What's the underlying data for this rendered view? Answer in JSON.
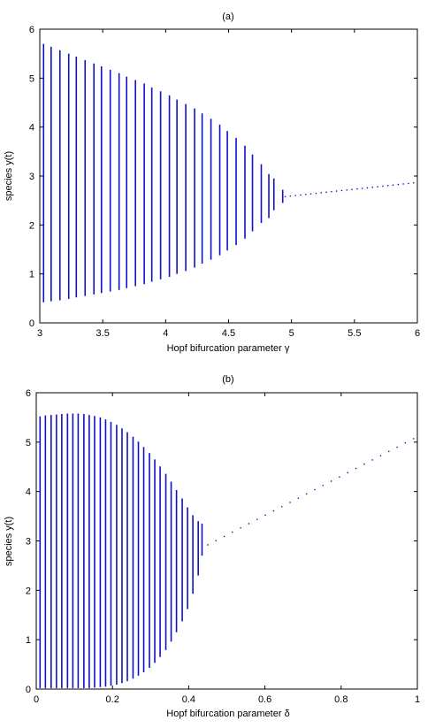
{
  "figure": {
    "series_color": "#1010c8"
  },
  "chart_data": [
    {
      "type": "bifurcation",
      "title": "(a)",
      "xlabel": "Hopf bifurcation parameter γ",
      "ylabel": "species y(t)",
      "xlim": [
        3,
        6
      ],
      "ylim": [
        0,
        6
      ],
      "xticks": [
        "3",
        "3.5",
        "4",
        "4.5",
        "5",
        "5.5",
        "6"
      ],
      "yticks": [
        "0",
        "1",
        "2",
        "3",
        "4",
        "5",
        "6"
      ],
      "grid": false,
      "oscillation_segments": [
        {
          "x": 3.03,
          "min": 0.42,
          "max": 5.7
        },
        {
          "x": 3.09,
          "min": 0.44,
          "max": 5.64
        },
        {
          "x": 3.16,
          "min": 0.46,
          "max": 5.57
        },
        {
          "x": 3.23,
          "min": 0.49,
          "max": 5.5
        },
        {
          "x": 3.29,
          "min": 0.52,
          "max": 5.44
        },
        {
          "x": 3.36,
          "min": 0.55,
          "max": 5.37
        },
        {
          "x": 3.43,
          "min": 0.58,
          "max": 5.3
        },
        {
          "x": 3.49,
          "min": 0.61,
          "max": 5.24
        },
        {
          "x": 3.56,
          "min": 0.64,
          "max": 5.17
        },
        {
          "x": 3.63,
          "min": 0.67,
          "max": 5.1
        },
        {
          "x": 3.69,
          "min": 0.71,
          "max": 5.03
        },
        {
          "x": 3.76,
          "min": 0.75,
          "max": 4.96
        },
        {
          "x": 3.83,
          "min": 0.79,
          "max": 4.89
        },
        {
          "x": 3.89,
          "min": 0.84,
          "max": 4.81
        },
        {
          "x": 3.96,
          "min": 0.89,
          "max": 4.73
        },
        {
          "x": 4.03,
          "min": 0.94,
          "max": 4.65
        },
        {
          "x": 4.09,
          "min": 1.0,
          "max": 4.56
        },
        {
          "x": 4.16,
          "min": 1.06,
          "max": 4.47
        },
        {
          "x": 4.23,
          "min": 1.13,
          "max": 4.38
        },
        {
          "x": 4.29,
          "min": 1.21,
          "max": 4.28
        },
        {
          "x": 4.36,
          "min": 1.29,
          "max": 4.17
        },
        {
          "x": 4.43,
          "min": 1.38,
          "max": 4.05
        },
        {
          "x": 4.49,
          "min": 1.48,
          "max": 3.92
        },
        {
          "x": 4.56,
          "min": 1.59,
          "max": 3.78
        },
        {
          "x": 4.63,
          "min": 1.72,
          "max": 3.62
        },
        {
          "x": 4.69,
          "min": 1.87,
          "max": 3.44
        },
        {
          "x": 4.76,
          "min": 2.04,
          "max": 3.24
        },
        {
          "x": 4.82,
          "min": 2.14,
          "max": 3.04
        },
        {
          "x": 4.86,
          "min": 2.3,
          "max": 2.95
        },
        {
          "x": 4.93,
          "min": 2.45,
          "max": 2.72
        }
      ],
      "steady_state": {
        "x_start": 4.95,
        "x_end": 5.97,
        "y_start": 2.58,
        "y_end": 2.86,
        "points": 26
      }
    },
    {
      "type": "bifurcation",
      "title": "(b)",
      "xlabel": "Hopf bifurcation parameter δ",
      "ylabel": "species y(t)",
      "xlim": [
        0,
        1
      ],
      "ylim": [
        0,
        6
      ],
      "xticks": [
        "0",
        "0.2",
        "0.4",
        "0.6",
        "0.8",
        "1"
      ],
      "yticks": [
        "0",
        "1",
        "2",
        "3",
        "4",
        "5",
        "6"
      ],
      "grid": false,
      "oscillation_segments": [
        {
          "x": 0.01,
          "min": 0.02,
          "max": 5.52
        },
        {
          "x": 0.024,
          "min": 0.02,
          "max": 5.54
        },
        {
          "x": 0.039,
          "min": 0.02,
          "max": 5.55
        },
        {
          "x": 0.053,
          "min": 0.02,
          "max": 5.56
        },
        {
          "x": 0.067,
          "min": 0.02,
          "max": 5.57
        },
        {
          "x": 0.082,
          "min": 0.02,
          "max": 5.58
        },
        {
          "x": 0.096,
          "min": 0.02,
          "max": 5.58
        },
        {
          "x": 0.11,
          "min": 0.02,
          "max": 5.58
        },
        {
          "x": 0.125,
          "min": 0.02,
          "max": 5.57
        },
        {
          "x": 0.139,
          "min": 0.02,
          "max": 5.55
        },
        {
          "x": 0.153,
          "min": 0.03,
          "max": 5.53
        },
        {
          "x": 0.168,
          "min": 0.04,
          "max": 5.5
        },
        {
          "x": 0.182,
          "min": 0.05,
          "max": 5.46
        },
        {
          "x": 0.196,
          "min": 0.07,
          "max": 5.41
        },
        {
          "x": 0.211,
          "min": 0.09,
          "max": 5.35
        },
        {
          "x": 0.225,
          "min": 0.12,
          "max": 5.28
        },
        {
          "x": 0.239,
          "min": 0.16,
          "max": 5.2
        },
        {
          "x": 0.254,
          "min": 0.21,
          "max": 5.11
        },
        {
          "x": 0.268,
          "min": 0.27,
          "max": 5.01
        },
        {
          "x": 0.282,
          "min": 0.34,
          "max": 4.9
        },
        {
          "x": 0.297,
          "min": 0.43,
          "max": 4.78
        },
        {
          "x": 0.311,
          "min": 0.53,
          "max": 4.65
        },
        {
          "x": 0.325,
          "min": 0.65,
          "max": 4.51
        },
        {
          "x": 0.34,
          "min": 0.79,
          "max": 4.36
        },
        {
          "x": 0.354,
          "min": 0.96,
          "max": 4.2
        },
        {
          "x": 0.368,
          "min": 1.15,
          "max": 4.03
        },
        {
          "x": 0.383,
          "min": 1.37,
          "max": 3.86
        },
        {
          "x": 0.397,
          "min": 1.62,
          "max": 3.68
        },
        {
          "x": 0.411,
          "min": 1.93,
          "max": 3.52
        },
        {
          "x": 0.425,
          "min": 2.3,
          "max": 3.4
        },
        {
          "x": 0.435,
          "min": 2.7,
          "max": 3.35
        }
      ],
      "steady_state": {
        "x_start": 0.45,
        "x_end": 0.99,
        "y_start": 2.92,
        "y_end": 5.07,
        "points": 26
      }
    }
  ]
}
